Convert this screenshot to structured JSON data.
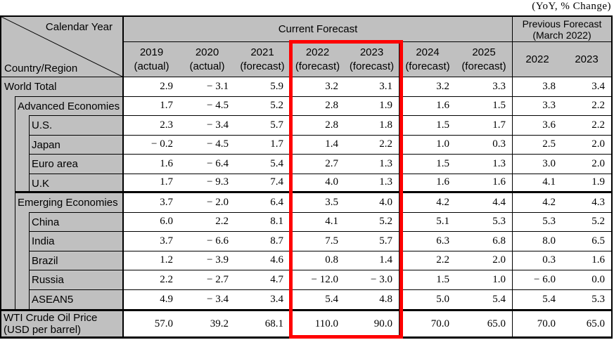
{
  "header": {
    "current": "Current Forecast",
    "previous_line1": "Previous Forecast",
    "previous_line2": "(March 2022)"
  },
  "highlight": {
    "color": "#ff0000",
    "highlighted_columns": [
      "2022 (forecast)",
      "2023 (forecast)"
    ]
  },
  "colors": {
    "header_gray": "#c0c0c0",
    "grid_line": "#000000",
    "cell_white": "#ffffff"
  },
  "chart_data": {
    "type": "table",
    "units_note": "(YoY, % Change)",
    "corner": {
      "top": "Calendar Year",
      "bottom": "Country/Region"
    },
    "column_groups": [
      {
        "label": "Current Forecast",
        "span": 7
      },
      {
        "label": "Previous Forecast (March 2022)",
        "span": 2
      }
    ],
    "columns": [
      {
        "year": "2019",
        "sub": "(actual)",
        "group": "current"
      },
      {
        "year": "2020",
        "sub": "(actual)",
        "group": "current"
      },
      {
        "year": "2021",
        "sub": "(forecast)",
        "group": "current"
      },
      {
        "year": "2022",
        "sub": "(forecast)",
        "group": "current",
        "highlighted": true
      },
      {
        "year": "2023",
        "sub": "(forecast)",
        "group": "current",
        "highlighted": true
      },
      {
        "year": "2024",
        "sub": "(forecast)",
        "group": "current"
      },
      {
        "year": "2025",
        "sub": "(forecast)",
        "group": "current"
      },
      {
        "year": "2022",
        "sub": "",
        "group": "previous"
      },
      {
        "year": "2023",
        "sub": "",
        "group": "previous"
      }
    ],
    "rows": [
      {
        "label": "World Total",
        "indent": 0,
        "thick_bottom": false,
        "values": [
          2.9,
          -3.1,
          5.9,
          3.2,
          3.1,
          3.2,
          3.3,
          3.8,
          3.4
        ]
      },
      {
        "label": "Advanced Economies",
        "indent": 1,
        "thick_bottom": false,
        "values": [
          1.7,
          -4.5,
          5.2,
          2.8,
          1.9,
          1.6,
          1.5,
          3.3,
          2.2
        ]
      },
      {
        "label": "U.S.",
        "indent": 2,
        "thick_bottom": false,
        "values": [
          2.3,
          -3.4,
          5.7,
          2.8,
          1.8,
          1.5,
          1.7,
          3.6,
          2.2
        ]
      },
      {
        "label": "Japan",
        "indent": 2,
        "thick_bottom": false,
        "values": [
          -0.2,
          -4.5,
          1.7,
          1.4,
          2.2,
          1.0,
          0.3,
          2.5,
          2.0
        ]
      },
      {
        "label": "Euro area",
        "indent": 2,
        "thick_bottom": false,
        "values": [
          1.6,
          -6.4,
          5.4,
          2.7,
          1.3,
          1.5,
          1.3,
          3.0,
          2.0
        ]
      },
      {
        "label": "U.K",
        "indent": 2,
        "thick_bottom": true,
        "values": [
          1.7,
          -9.3,
          7.4,
          4.0,
          1.3,
          1.6,
          1.6,
          4.1,
          1.9
        ]
      },
      {
        "label": "Emerging Economies",
        "indent": 1,
        "thick_bottom": false,
        "values": [
          3.7,
          -2.0,
          6.4,
          3.5,
          4.0,
          4.2,
          4.4,
          4.2,
          4.3
        ]
      },
      {
        "label": "China",
        "indent": 2,
        "thick_bottom": false,
        "values": [
          6.0,
          2.2,
          8.1,
          4.1,
          5.2,
          5.1,
          5.3,
          5.3,
          5.2
        ]
      },
      {
        "label": "India",
        "indent": 2,
        "thick_bottom": false,
        "values": [
          3.7,
          -6.6,
          8.7,
          7.5,
          5.7,
          6.3,
          6.8,
          8.0,
          6.5
        ]
      },
      {
        "label": "Brazil",
        "indent": 2,
        "thick_bottom": false,
        "values": [
          1.2,
          -3.9,
          4.6,
          0.8,
          1.4,
          2.2,
          2.0,
          0.3,
          1.6
        ]
      },
      {
        "label": "Russia",
        "indent": 2,
        "thick_bottom": false,
        "values": [
          2.2,
          -2.7,
          4.7,
          -12.0,
          -3.0,
          1.5,
          1.0,
          -6.0,
          0.0
        ]
      },
      {
        "label": "ASEAN5",
        "indent": 2,
        "thick_bottom": true,
        "values": [
          4.9,
          -3.4,
          3.4,
          5.4,
          4.8,
          5.0,
          5.4,
          5.4,
          5.3
        ]
      }
    ],
    "oil_row": {
      "label_line1": "WTI Crude Oil Price",
      "label_line2": "(USD per barrel)",
      "values": [
        57.0,
        39.2,
        68.1,
        110.0,
        90.0,
        70.0,
        65.0,
        70.0,
        65.0
      ]
    }
  }
}
